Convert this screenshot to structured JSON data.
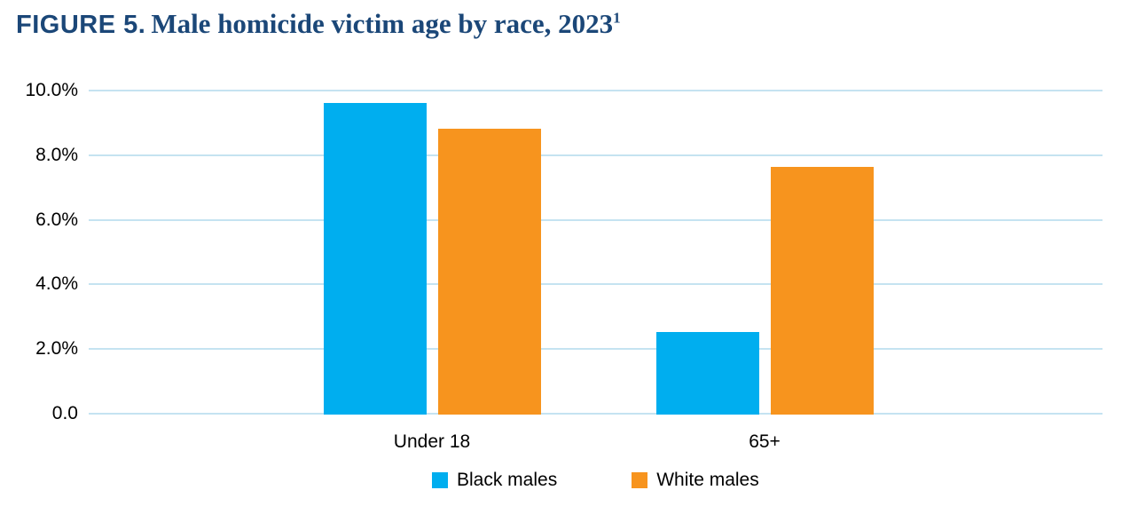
{
  "title": {
    "prefix": "FIGURE 5.",
    "main": "Male homicide victim age by race, 2023",
    "footnote_marker": "1"
  },
  "chart_data": {
    "type": "bar",
    "title": "FIGURE 5. Male homicide victim age by race, 2023",
    "categories": [
      "Under 18",
      "65+"
    ],
    "series": [
      {
        "name": "Black males",
        "color": "#00AEEF",
        "values": [
          9.6,
          2.5
        ]
      },
      {
        "name": "White males",
        "color": "#F7941E",
        "values": [
          8.8,
          7.6
        ]
      }
    ],
    "xlabel": "",
    "ylabel": "",
    "ylim": [
      0,
      10
    ],
    "yticks": [
      {
        "value": 0,
        "label": "0.0"
      },
      {
        "value": 2,
        "label": "2.0%"
      },
      {
        "value": 4,
        "label": "4.0%"
      },
      {
        "value": 6,
        "label": "6.0%"
      },
      {
        "value": 8,
        "label": "8.0%"
      },
      {
        "value": 10,
        "label": "10.0%"
      }
    ],
    "grid": true,
    "gridline_color": "#C5E3F1",
    "legend_position": "bottom"
  },
  "colors": {
    "title_text": "#1B4778",
    "axis_text": "#000000",
    "background": "#FFFFFF"
  }
}
